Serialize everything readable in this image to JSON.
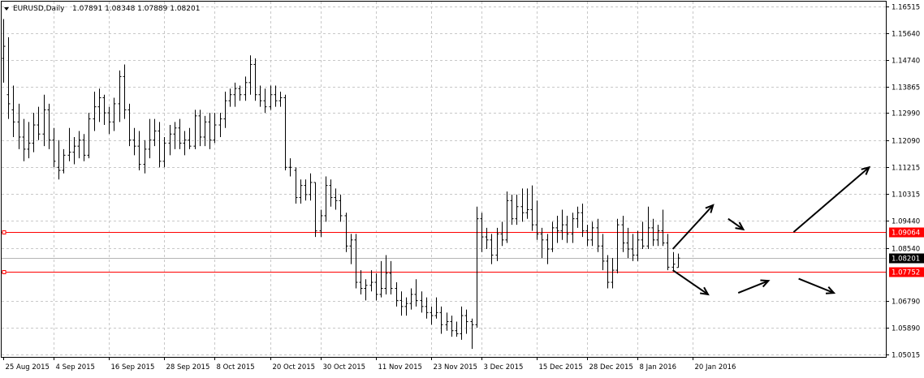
{
  "window": {
    "symbol_timeframe": "EURUSD,Daily",
    "ohlc_text": "1.07891 1.08348 1.07889 1.08201"
  },
  "chart_data": {
    "type": "ohlc",
    "symbol": "EURUSD",
    "timeframe": "Daily",
    "ylim": [
      1.05015,
      1.16515
    ],
    "y_ticks": [
      "1.16515",
      "1.15640",
      "1.14740",
      "1.13865",
      "1.12990",
      "1.12090",
      "1.11215",
      "1.10315",
      "1.09440",
      "1.08540",
      "1.06790",
      "1.05890",
      "1.05015"
    ],
    "x_ticks": [
      "25 Aug 2015",
      "4 Sep 2015",
      "16 Sep 2015",
      "28 Sep 2015",
      "8 Oct 2015",
      "20 Oct 2015",
      "30 Oct 2015",
      "11 Nov 2015",
      "23 Nov 2015",
      "3 Dec 2015",
      "15 Dec 2015",
      "28 Dec 2015",
      "8 Jan 2016",
      "20 Jan 2016"
    ],
    "grid": true,
    "current_price": "1.08201",
    "horizontal_lines": [
      {
        "price": "1.09064",
        "color": "#ff0000"
      },
      {
        "price": "1.07752",
        "color": "#ff0000"
      }
    ],
    "bars": [
      {
        "o": 1.148,
        "h": 1.161,
        "l": 1.14,
        "c": 1.152
      },
      {
        "o": 1.136,
        "h": 1.155,
        "l": 1.128,
        "c": 1.133
      },
      {
        "o": 1.131,
        "h": 1.139,
        "l": 1.122,
        "c": 1.127
      },
      {
        "o": 1.127,
        "h": 1.133,
        "l": 1.118,
        "c": 1.122
      },
      {
        "o": 1.122,
        "h": 1.128,
        "l": 1.114,
        "c": 1.118
      },
      {
        "o": 1.118,
        "h": 1.127,
        "l": 1.115,
        "c": 1.12
      },
      {
        "o": 1.12,
        "h": 1.13,
        "l": 1.117,
        "c": 1.126
      },
      {
        "o": 1.126,
        "h": 1.132,
        "l": 1.121,
        "c": 1.123
      },
      {
        "o": 1.123,
        "h": 1.136,
        "l": 1.119,
        "c": 1.131
      },
      {
        "o": 1.131,
        "h": 1.133,
        "l": 1.118,
        "c": 1.121
      },
      {
        "o": 1.121,
        "h": 1.125,
        "l": 1.112,
        "c": 1.114
      },
      {
        "o": 1.112,
        "h": 1.121,
        "l": 1.108,
        "c": 1.111
      },
      {
        "o": 1.111,
        "h": 1.118,
        "l": 1.11,
        "c": 1.116
      },
      {
        "o": 1.116,
        "h": 1.125,
        "l": 1.114,
        "c": 1.117
      },
      {
        "o": 1.117,
        "h": 1.122,
        "l": 1.113,
        "c": 1.119
      },
      {
        "o": 1.119,
        "h": 1.124,
        "l": 1.115,
        "c": 1.121
      },
      {
        "o": 1.121,
        "h": 1.123,
        "l": 1.114,
        "c": 1.116
      },
      {
        "o": 1.116,
        "h": 1.13,
        "l": 1.115,
        "c": 1.128
      },
      {
        "o": 1.128,
        "h": 1.137,
        "l": 1.124,
        "c": 1.132
      },
      {
        "o": 1.132,
        "h": 1.138,
        "l": 1.127,
        "c": 1.135
      },
      {
        "o": 1.135,
        "h": 1.136,
        "l": 1.126,
        "c": 1.13
      },
      {
        "o": 1.13,
        "h": 1.132,
        "l": 1.123,
        "c": 1.127
      },
      {
        "o": 1.127,
        "h": 1.135,
        "l": 1.124,
        "c": 1.133
      },
      {
        "o": 1.133,
        "h": 1.144,
        "l": 1.127,
        "c": 1.142
      },
      {
        "o": 1.142,
        "h": 1.146,
        "l": 1.128,
        "c": 1.131
      },
      {
        "o": 1.131,
        "h": 1.133,
        "l": 1.119,
        "c": 1.121
      },
      {
        "o": 1.121,
        "h": 1.125,
        "l": 1.116,
        "c": 1.119
      },
      {
        "o": 1.119,
        "h": 1.124,
        "l": 1.111,
        "c": 1.113
      },
      {
        "o": 1.113,
        "h": 1.121,
        "l": 1.11,
        "c": 1.118
      },
      {
        "o": 1.118,
        "h": 1.128,
        "l": 1.115,
        "c": 1.121
      },
      {
        "o": 1.121,
        "h": 1.128,
        "l": 1.119,
        "c": 1.124
      },
      {
        "o": 1.124,
        "h": 1.127,
        "l": 1.112,
        "c": 1.114
      },
      {
        "o": 1.114,
        "h": 1.122,
        "l": 1.112,
        "c": 1.12
      },
      {
        "o": 1.12,
        "h": 1.126,
        "l": 1.116,
        "c": 1.123
      },
      {
        "o": 1.123,
        "h": 1.127,
        "l": 1.118,
        "c": 1.125
      },
      {
        "o": 1.125,
        "h": 1.128,
        "l": 1.118,
        "c": 1.12
      },
      {
        "o": 1.12,
        "h": 1.124,
        "l": 1.116,
        "c": 1.121
      },
      {
        "o": 1.121,
        "h": 1.125,
        "l": 1.118,
        "c": 1.119
      },
      {
        "o": 1.119,
        "h": 1.131,
        "l": 1.118,
        "c": 1.129
      },
      {
        "o": 1.129,
        "h": 1.131,
        "l": 1.119,
        "c": 1.122
      },
      {
        "o": 1.122,
        "h": 1.129,
        "l": 1.119,
        "c": 1.127
      },
      {
        "o": 1.127,
        "h": 1.13,
        "l": 1.118,
        "c": 1.121
      },
      {
        "o": 1.121,
        "h": 1.13,
        "l": 1.12,
        "c": 1.126
      },
      {
        "o": 1.126,
        "h": 1.13,
        "l": 1.122,
        "c": 1.128
      },
      {
        "o": 1.128,
        "h": 1.137,
        "l": 1.125,
        "c": 1.134
      },
      {
        "o": 1.134,
        "h": 1.138,
        "l": 1.132,
        "c": 1.136
      },
      {
        "o": 1.136,
        "h": 1.14,
        "l": 1.132,
        "c": 1.138
      },
      {
        "o": 1.138,
        "h": 1.139,
        "l": 1.134,
        "c": 1.136
      },
      {
        "o": 1.136,
        "h": 1.142,
        "l": 1.134,
        "c": 1.14
      },
      {
        "o": 1.14,
        "h": 1.149,
        "l": 1.136,
        "c": 1.146
      },
      {
        "o": 1.146,
        "h": 1.148,
        "l": 1.134,
        "c": 1.136
      },
      {
        "o": 1.136,
        "h": 1.139,
        "l": 1.132,
        "c": 1.134
      },
      {
        "o": 1.134,
        "h": 1.138,
        "l": 1.13,
        "c": 1.132
      },
      {
        "o": 1.132,
        "h": 1.139,
        "l": 1.131,
        "c": 1.136
      },
      {
        "o": 1.136,
        "h": 1.139,
        "l": 1.132,
        "c": 1.134
      },
      {
        "o": 1.134,
        "h": 1.137,
        "l": 1.132,
        "c": 1.135
      },
      {
        "o": 1.135,
        "h": 1.136,
        "l": 1.111,
        "c": 1.112
      },
      {
        "o": 1.112,
        "h": 1.115,
        "l": 1.109,
        "c": 1.112
      },
      {
        "o": 1.111,
        "h": 1.112,
        "l": 1.1,
        "c": 1.102
      },
      {
        "o": 1.102,
        "h": 1.108,
        "l": 1.1,
        "c": 1.106
      },
      {
        "o": 1.106,
        "h": 1.108,
        "l": 1.101,
        "c": 1.103
      },
      {
        "o": 1.103,
        "h": 1.11,
        "l": 1.101,
        "c": 1.107
      },
      {
        "o": 1.107,
        "h": 1.107,
        "l": 1.089,
        "c": 1.091
      },
      {
        "o": 1.091,
        "h": 1.098,
        "l": 1.089,
        "c": 1.096
      },
      {
        "o": 1.096,
        "h": 1.109,
        "l": 1.094,
        "c": 1.106
      },
      {
        "o": 1.106,
        "h": 1.108,
        "l": 1.099,
        "c": 1.102
      },
      {
        "o": 1.102,
        "h": 1.105,
        "l": 1.098,
        "c": 1.101
      },
      {
        "o": 1.101,
        "h": 1.103,
        "l": 1.094,
        "c": 1.096
      },
      {
        "o": 1.096,
        "h": 1.097,
        "l": 1.084,
        "c": 1.086
      },
      {
        "o": 1.086,
        "h": 1.09,
        "l": 1.08,
        "c": 1.088
      },
      {
        "o": 1.088,
        "h": 1.09,
        "l": 1.072,
        "c": 1.074
      },
      {
        "o": 1.074,
        "h": 1.078,
        "l": 1.07,
        "c": 1.072
      },
      {
        "o": 1.072,
        "h": 1.075,
        "l": 1.068,
        "c": 1.073
      },
      {
        "o": 1.073,
        "h": 1.078,
        "l": 1.071,
        "c": 1.074
      },
      {
        "o": 1.074,
        "h": 1.077,
        "l": 1.068,
        "c": 1.07
      },
      {
        "o": 1.07,
        "h": 1.081,
        "l": 1.069,
        "c": 1.072
      },
      {
        "o": 1.072,
        "h": 1.083,
        "l": 1.07,
        "c": 1.077
      },
      {
        "o": 1.077,
        "h": 1.081,
        "l": 1.07,
        "c": 1.072
      },
      {
        "o": 1.072,
        "h": 1.074,
        "l": 1.066,
        "c": 1.068
      },
      {
        "o": 1.068,
        "h": 1.071,
        "l": 1.063,
        "c": 1.066
      },
      {
        "o": 1.066,
        "h": 1.069,
        "l": 1.063,
        "c": 1.067
      },
      {
        "o": 1.067,
        "h": 1.072,
        "l": 1.065,
        "c": 1.07
      },
      {
        "o": 1.07,
        "h": 1.075,
        "l": 1.066,
        "c": 1.068
      },
      {
        "o": 1.068,
        "h": 1.071,
        "l": 1.064,
        "c": 1.066
      },
      {
        "o": 1.066,
        "h": 1.069,
        "l": 1.062,
        "c": 1.064
      },
      {
        "o": 1.064,
        "h": 1.066,
        "l": 1.06,
        "c": 1.063
      },
      {
        "o": 1.063,
        "h": 1.069,
        "l": 1.062,
        "c": 1.064
      },
      {
        "o": 1.064,
        "h": 1.066,
        "l": 1.057,
        "c": 1.06
      },
      {
        "o": 1.06,
        "h": 1.064,
        "l": 1.058,
        "c": 1.061
      },
      {
        "o": 1.061,
        "h": 1.063,
        "l": 1.056,
        "c": 1.058
      },
      {
        "o": 1.058,
        "h": 1.061,
        "l": 1.056,
        "c": 1.057
      },
      {
        "o": 1.057,
        "h": 1.066,
        "l": 1.055,
        "c": 1.063
      },
      {
        "o": 1.063,
        "h": 1.065,
        "l": 1.057,
        "c": 1.061
      },
      {
        "o": 1.061,
        "h": 1.062,
        "l": 1.052,
        "c": 1.06
      },
      {
        "o": 1.06,
        "h": 1.099,
        "l": 1.059,
        "c": 1.095
      },
      {
        "o": 1.095,
        "h": 1.097,
        "l": 1.084,
        "c": 1.089
      },
      {
        "o": 1.089,
        "h": 1.092,
        "l": 1.085,
        "c": 1.088
      },
      {
        "o": 1.088,
        "h": 1.09,
        "l": 1.08,
        "c": 1.083
      },
      {
        "o": 1.083,
        "h": 1.092,
        "l": 1.081,
        "c": 1.09
      },
      {
        "o": 1.09,
        "h": 1.094,
        "l": 1.086,
        "c": 1.088
      },
      {
        "o": 1.088,
        "h": 1.104,
        "l": 1.087,
        "c": 1.101
      },
      {
        "o": 1.101,
        "h": 1.103,
        "l": 1.093,
        "c": 1.095
      },
      {
        "o": 1.095,
        "h": 1.103,
        "l": 1.093,
        "c": 1.099
      },
      {
        "o": 1.099,
        "h": 1.105,
        "l": 1.094,
        "c": 1.097
      },
      {
        "o": 1.097,
        "h": 1.105,
        "l": 1.095,
        "c": 1.098
      },
      {
        "o": 1.098,
        "h": 1.106,
        "l": 1.091,
        "c": 1.093
      },
      {
        "o": 1.093,
        "h": 1.101,
        "l": 1.088,
        "c": 1.09
      },
      {
        "o": 1.09,
        "h": 1.092,
        "l": 1.082,
        "c": 1.088
      },
      {
        "o": 1.088,
        "h": 1.09,
        "l": 1.08,
        "c": 1.085
      },
      {
        "o": 1.085,
        "h": 1.094,
        "l": 1.084,
        "c": 1.092
      },
      {
        "o": 1.092,
        "h": 1.096,
        "l": 1.087,
        "c": 1.091
      },
      {
        "o": 1.091,
        "h": 1.098,
        "l": 1.088,
        "c": 1.093
      },
      {
        "o": 1.093,
        "h": 1.096,
        "l": 1.087,
        "c": 1.09
      },
      {
        "o": 1.09,
        "h": 1.097,
        "l": 1.087,
        "c": 1.095
      },
      {
        "o": 1.095,
        "h": 1.099,
        "l": 1.092,
        "c": 1.097
      },
      {
        "o": 1.097,
        "h": 1.1,
        "l": 1.089,
        "c": 1.091
      },
      {
        "o": 1.091,
        "h": 1.093,
        "l": 1.086,
        "c": 1.088
      },
      {
        "o": 1.088,
        "h": 1.094,
        "l": 1.086,
        "c": 1.092
      },
      {
        "o": 1.092,
        "h": 1.095,
        "l": 1.084,
        "c": 1.086
      },
      {
        "o": 1.086,
        "h": 1.09,
        "l": 1.078,
        "c": 1.081
      },
      {
        "o": 1.081,
        "h": 1.083,
        "l": 1.072,
        "c": 1.074
      },
      {
        "o": 1.074,
        "h": 1.082,
        "l": 1.072,
        "c": 1.078
      },
      {
        "o": 1.078,
        "h": 1.095,
        "l": 1.077,
        "c": 1.093
      },
      {
        "o": 1.093,
        "h": 1.096,
        "l": 1.084,
        "c": 1.087
      },
      {
        "o": 1.087,
        "h": 1.092,
        "l": 1.082,
        "c": 1.085
      },
      {
        "o": 1.085,
        "h": 1.09,
        "l": 1.081,
        "c": 1.083
      },
      {
        "o": 1.083,
        "h": 1.091,
        "l": 1.081,
        "c": 1.088
      },
      {
        "o": 1.088,
        "h": 1.094,
        "l": 1.085,
        "c": 1.086
      },
      {
        "o": 1.086,
        "h": 1.099,
        "l": 1.085,
        "c": 1.092
      },
      {
        "o": 1.092,
        "h": 1.095,
        "l": 1.086,
        "c": 1.088
      },
      {
        "o": 1.088,
        "h": 1.093,
        "l": 1.086,
        "c": 1.091
      },
      {
        "o": 1.091,
        "h": 1.098,
        "l": 1.086,
        "c": 1.087
      },
      {
        "o": 1.087,
        "h": 1.09,
        "l": 1.078,
        "c": 1.079
      },
      {
        "o": 1.079,
        "h": 1.084,
        "l": 1.078,
        "c": 1.08
      },
      {
        "o": 1.0789,
        "h": 1.0835,
        "l": 1.0789,
        "c": 1.082
      }
    ],
    "projection_arrows": [
      {
        "from": [
          133,
          1.085
        ],
        "to": [
          141,
          1.0995
        ]
      },
      {
        "from": [
          144,
          1.095
        ],
        "to": [
          147,
          1.0915
        ]
      },
      {
        "from": [
          157,
          1.0906
        ],
        "to": [
          172,
          1.112
        ]
      },
      {
        "from": [
          133,
          1.078
        ],
        "to": [
          140,
          1.07
        ]
      },
      {
        "from": [
          146,
          1.0705
        ],
        "to": [
          152,
          1.0745
        ]
      },
      {
        "from": [
          158,
          1.0752
        ],
        "to": [
          165,
          1.0705
        ]
      }
    ]
  }
}
